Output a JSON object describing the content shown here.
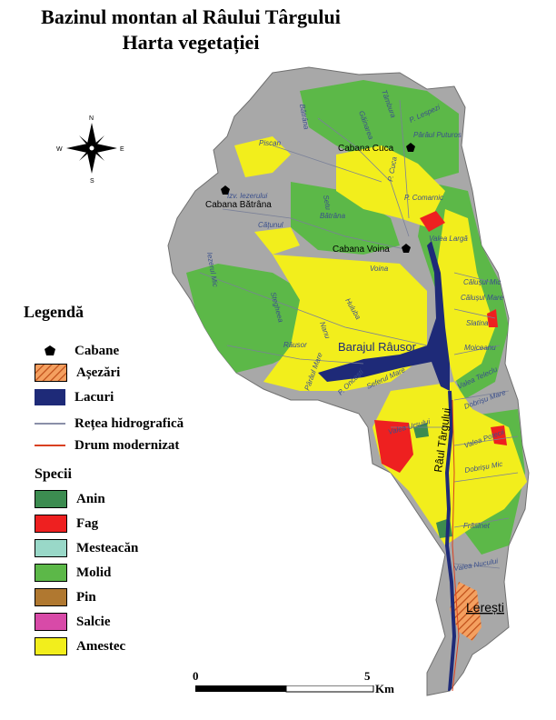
{
  "title": {
    "line1": "Bazinul montan al Râului Târgului",
    "line2": "Harta vegetației"
  },
  "compass": {
    "n": "N",
    "s": "S",
    "e": "E",
    "w": "W"
  },
  "legend": {
    "title": "Legendă",
    "items": [
      {
        "label": "Cabane",
        "symbol": "pentagon",
        "color": "#000000"
      },
      {
        "label": "Așezări",
        "symbol": "hatch",
        "color": "#e8782a"
      },
      {
        "label": "Lacuri",
        "symbol": "fill",
        "color": "#1e2a78"
      },
      {
        "label": "Rețea hidrografică",
        "symbol": "line",
        "color": "#8a8fa8"
      },
      {
        "label": "Drum modernizat",
        "symbol": "line",
        "color": "#d94020"
      }
    ],
    "species_title": "Specii",
    "species": [
      {
        "label": "Anin",
        "color": "#3c8c50"
      },
      {
        "label": "Fag",
        "color": "#ee2020"
      },
      {
        "label": "Mesteacăn",
        "color": "#99d8c8"
      },
      {
        "label": "Molid",
        "color": "#5cb848"
      },
      {
        "label": "Pin",
        "color": "#b07830"
      },
      {
        "label": "Salcie",
        "color": "#d84aa8"
      },
      {
        "label": "Amestec",
        "color": "#f2ee1c"
      }
    ]
  },
  "scale": {
    "start": "0",
    "mid": "5",
    "unit": "Km"
  },
  "map": {
    "cabins": [
      "Cabana Cuca",
      "Cabana Bătrâna",
      "Cabana Voina"
    ],
    "settlement": "Lerești",
    "lake": "Barajul Râusor",
    "river": "Râul Târgului",
    "streams": [
      "Tâmbura",
      "P. Lespezi",
      "Bătrâna",
      "Găinarea",
      "Piscan",
      "Pârâul Puturos",
      "P. Cuca",
      "P. Comarnic",
      "Izv. Iezerului",
      "Căţunul",
      "Bătrâna",
      "Setu",
      "Valea Largă",
      "Voina",
      "Iezerul Mic",
      "Călușul Mic",
      "Călușul Mare",
      "Slatina",
      "Moiceanu",
      "Stegheea",
      "Huluba",
      "Nanu",
      "Râusor",
      "Pârâul Mare",
      "P. Oncești",
      "Seferul Mare",
      "Valea Teleclu",
      "Dobrișu Mare",
      "Valea Ursului",
      "Valea Potecii",
      "Dobrișu Mic",
      "Frăsinet",
      "Valea Nucului"
    ]
  }
}
